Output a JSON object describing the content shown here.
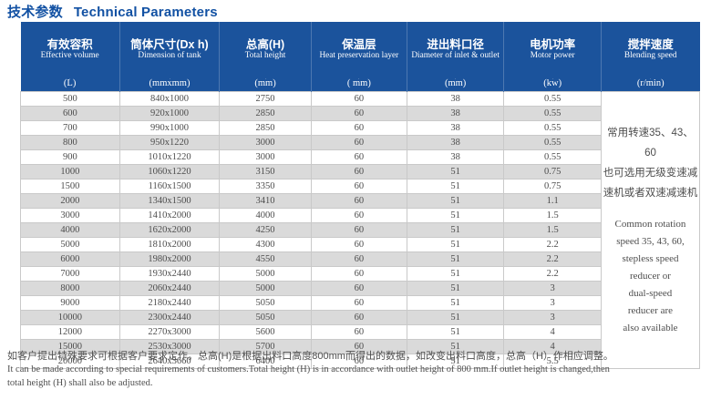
{
  "title": {
    "zh": "技术参数",
    "en": "Technical Parameters"
  },
  "colors": {
    "title_text": "#1251a3",
    "header_bg": "#1b539c",
    "header_divider": "#4d78b1",
    "row_stripe": "#dadada",
    "body_text": "#4d4d4d",
    "grid_border": "#c9c9c9"
  },
  "table": {
    "columns": [
      {
        "zh": "有效容积",
        "en": "Effective volume",
        "unit": "(L)"
      },
      {
        "zh": "筒体尺寸(Dx h)",
        "en": "Dimension of tank",
        "unit": "(mmxmm)"
      },
      {
        "zh": "总高(H)",
        "en": "Total height",
        "unit": "(mm)"
      },
      {
        "zh": "保温层",
        "en": "Heat preservation layer",
        "unit": "( mm)"
      },
      {
        "zh": "进出料口径",
        "en": "Diameter of inlet & outlet",
        "unit": "(mm)"
      },
      {
        "zh": "电机功率",
        "en": "Motor power",
        "unit": "(kw)"
      },
      {
        "zh": "搅拌速度",
        "en": "Blending speed",
        "unit": "(r/min)"
      }
    ],
    "rows": [
      [
        "500",
        "840x1000",
        "2750",
        "60",
        "38",
        "0.55"
      ],
      [
        "600",
        "920x1000",
        "2850",
        "60",
        "38",
        "0.55"
      ],
      [
        "700",
        "990x1000",
        "2850",
        "60",
        "38",
        "0.55"
      ],
      [
        "800",
        "950x1220",
        "3000",
        "60",
        "38",
        "0.55"
      ],
      [
        "900",
        "1010x1220",
        "3000",
        "60",
        "38",
        "0.55"
      ],
      [
        "1000",
        "1060x1220",
        "3150",
        "60",
        "51",
        "0.75"
      ],
      [
        "1500",
        "1160x1500",
        "3350",
        "60",
        "51",
        "0.75"
      ],
      [
        "2000",
        "1340x1500",
        "3410",
        "60",
        "51",
        "1.1"
      ],
      [
        "3000",
        "1410x2000",
        "4000",
        "60",
        "51",
        "1.5"
      ],
      [
        "4000",
        "1620x2000",
        "4250",
        "60",
        "51",
        "1.5"
      ],
      [
        "5000",
        "1810x2000",
        "4300",
        "60",
        "51",
        "2.2"
      ],
      [
        "6000",
        "1980x2000",
        "4550",
        "60",
        "51",
        "2.2"
      ],
      [
        "7000",
        "1930x2440",
        "5000",
        "60",
        "51",
        "2.2"
      ],
      [
        "8000",
        "2060x2440",
        "5000",
        "60",
        "51",
        "3"
      ],
      [
        "9000",
        "2180x2440",
        "5050",
        "60",
        "51",
        "3"
      ],
      [
        "10000",
        "2300x2440",
        "5050",
        "60",
        "51",
        "3"
      ],
      [
        "12000",
        "2270x3000",
        "5600",
        "60",
        "51",
        "4"
      ],
      [
        "15000",
        "2530x3000",
        "5700",
        "60",
        "51",
        "4"
      ],
      [
        "20000",
        "2640x3660",
        "6400",
        "60",
        "51",
        "5.5"
      ]
    ]
  },
  "speed_note": {
    "zh_lines": [
      "常用转速35、43、60",
      "也可选用无级变速减",
      "速机或者双速减速机"
    ],
    "en_lines": [
      "Common rotation",
      "speed 35, 43, 60,",
      "stepless speed",
      "reducer or",
      "dual-speed",
      "reducer are",
      "also available"
    ]
  },
  "notes": {
    "zh": "如客户提出特殊要求可根据客户要求定作。总高(H)是根据出料口高度800mm而得出的数据，如改变出料口高度，总高（H）作相应调整。",
    "en_line1": "It can be made according to special requirements of customers.Total height (H) is in accordance with outlet height of 800 mm.If outlet height is changed,then",
    "en_line2": "total height (H) shall also be adjusted."
  }
}
